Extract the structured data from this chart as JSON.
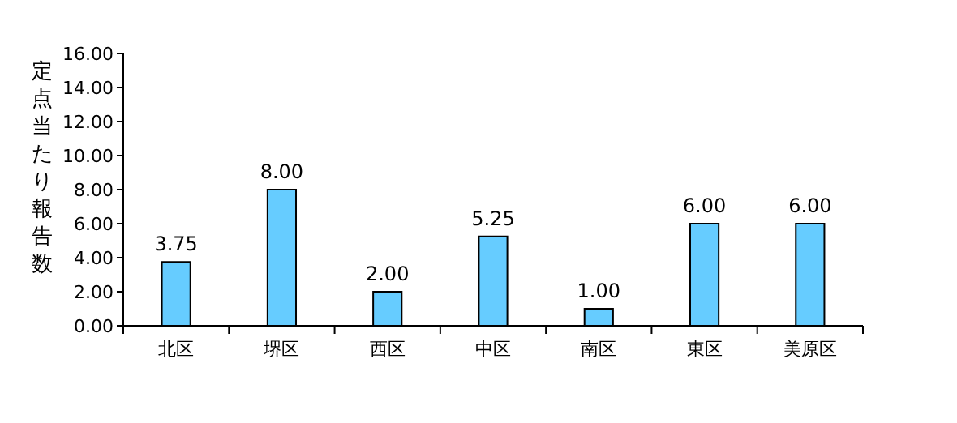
{
  "chart_data": {
    "type": "bar",
    "ylabel": "定点当たり報告数",
    "categories": [
      "北区",
      "堺区",
      "西区",
      "中区",
      "南区",
      "東区",
      "美原区"
    ],
    "values": [
      3.75,
      8.0,
      2.0,
      5.25,
      1.0,
      6.0,
      6.0
    ],
    "value_labels": [
      "3.75",
      "8.00",
      "2.00",
      "5.25",
      "1.00",
      "6.00",
      "6.00"
    ],
    "color": "#66ccff",
    "ylim": [
      0,
      16
    ],
    "yticks": [
      {
        "value": 0,
        "label": "0.00"
      },
      {
        "value": 2,
        "label": "2.00"
      },
      {
        "value": 4,
        "label": "4.00"
      },
      {
        "value": 6,
        "label": "6.00"
      },
      {
        "value": 8,
        "label": "8.00"
      },
      {
        "value": 10,
        "label": "10.00"
      },
      {
        "value": 12,
        "label": "12.00"
      },
      {
        "value": 14,
        "label": "14.00"
      },
      {
        "value": 16,
        "label": "16.00"
      }
    ],
    "grid": false
  }
}
